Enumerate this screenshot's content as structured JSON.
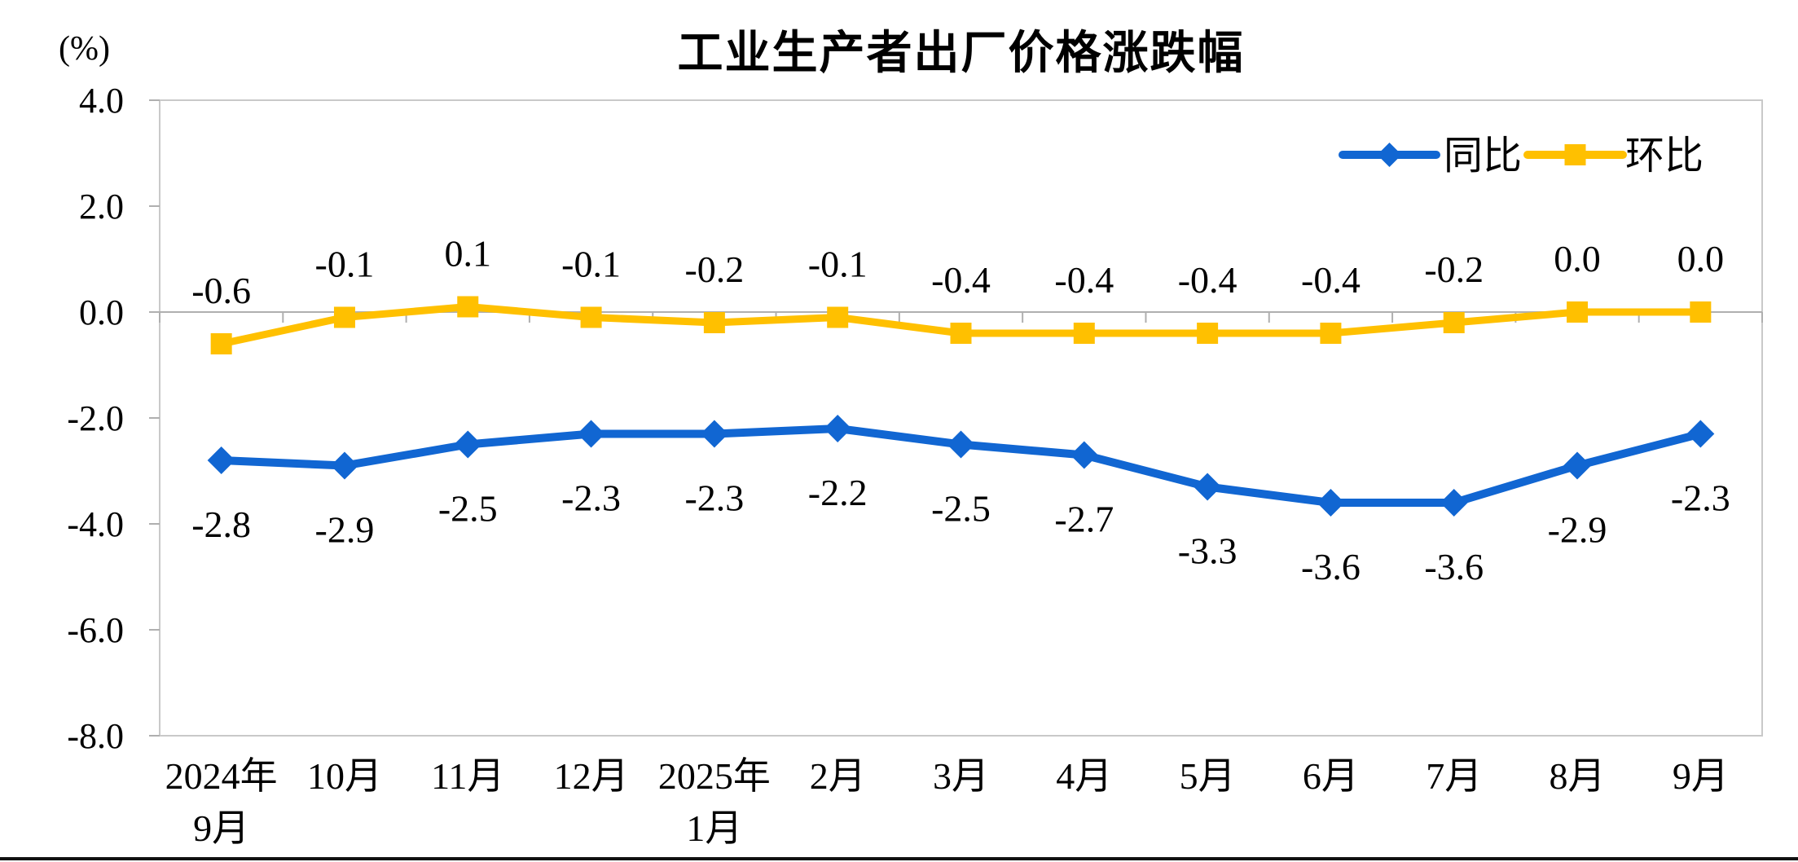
{
  "title": "工业生产者出厂价格涨跌幅",
  "unit_label": "(%)",
  "chart_data": {
    "type": "line",
    "categories": [
      [
        "2024年",
        "9月"
      ],
      [
        "10月"
      ],
      [
        "11月"
      ],
      [
        "12月"
      ],
      [
        "2025年",
        "1月"
      ],
      [
        "2月"
      ],
      [
        "3月"
      ],
      [
        "4月"
      ],
      [
        "5月"
      ],
      [
        "6月"
      ],
      [
        "7月"
      ],
      [
        "8月"
      ],
      [
        "9月"
      ]
    ],
    "series": [
      {
        "key": "yoy",
        "name": "同比",
        "color": "#1166D2",
        "marker": "diamond",
        "label_position": "below",
        "values": [
          -2.8,
          -2.9,
          -2.5,
          -2.3,
          -2.3,
          -2.2,
          -2.5,
          -2.7,
          -3.3,
          -3.6,
          -3.6,
          -2.9,
          -2.3
        ]
      },
      {
        "key": "mom",
        "name": "环比",
        "color": "#FFC000",
        "marker": "square",
        "label_position": "above",
        "values": [
          -0.6,
          -0.1,
          0.1,
          -0.1,
          -0.2,
          -0.1,
          -0.4,
          -0.4,
          -0.4,
          -0.4,
          -0.2,
          0.0,
          0.0
        ]
      }
    ],
    "ylabel": "(%)",
    "ylim": [
      -8,
      4
    ],
    "yticks": [
      4,
      2,
      0,
      -2,
      -4,
      -6,
      -8
    ],
    "ytick_format_decimals": 1,
    "grid": false,
    "legend_position": "top-right",
    "axis_color": "#AFAFAF",
    "border_color": "#C9C9C9",
    "text_color": "#000000"
  }
}
